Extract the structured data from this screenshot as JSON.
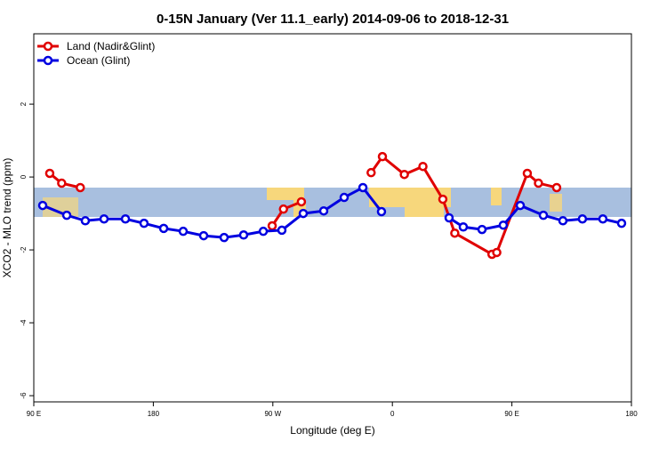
{
  "chart_data": {
    "type": "line",
    "title": "0-15N January (Ver 11.1_early)   2014-09-06 to 2018-12-31",
    "x_label": "Longitude (deg E)",
    "y_label": "XCO2 - MLO trend (ppm)",
    "xlim": [
      90,
      540
    ],
    "ylim": [
      -6.17,
      3.93
    ],
    "xticks": [
      {
        "value": 90,
        "label": "90 E"
      },
      180,
      {
        "value": 270,
        "label": "90 W"
      },
      {
        "value": 360,
        "label": "0"
      },
      {
        "value": 450,
        "label": "90 E"
      },
      {
        "value": 540,
        "label": "180"
      }
    ],
    "yticks": [
      -6,
      -4,
      -2,
      0,
      2
    ],
    "legend": "top-left",
    "series": [
      {
        "name": "Land (Nadir&Glint)",
        "color": "#e00000",
        "x": [
          102,
          111,
          125,
          null,
          269.5,
          278,
          291.5,
          null,
          344,
          352.5,
          369,
          383,
          398,
          407,
          435,
          438.6,
          461.6,
          470,
          483.7
        ],
        "values": [
          0.1,
          -0.17,
          -0.29,
          null,
          -1.34,
          -0.88,
          -0.68,
          null,
          0.12,
          0.56,
          0.07,
          0.29,
          -0.61,
          -1.54,
          -2.12,
          -2.07,
          0.1,
          -0.17,
          -0.29
        ]
      },
      {
        "name": "Ocean (Glint)",
        "color": "#0000e0",
        "x": [
          96.7,
          114.8,
          128.8,
          142.9,
          159,
          173,
          187.8,
          202.5,
          217.9,
          233.3,
          248,
          262.8,
          276.8,
          292.9,
          308.3,
          323.7,
          337.8,
          351.8,
          null,
          402.7,
          413.4,
          427.5,
          443.5,
          456.3,
          473.7,
          488.4,
          503.1,
          518.5,
          532.6
        ],
        "values": [
          -0.78,
          -1.05,
          -1.2,
          -1.15,
          -1.15,
          -1.27,
          -1.41,
          -1.49,
          -1.61,
          -1.66,
          -1.59,
          -1.49,
          -1.46,
          -1.0,
          -0.93,
          -0.56,
          -0.29,
          -0.95,
          null,
          -1.12,
          -1.37,
          -1.44,
          -1.32,
          -0.78,
          -1.05,
          -1.2,
          -1.15,
          -1.15,
          -1.27
        ]
      }
    ]
  }
}
